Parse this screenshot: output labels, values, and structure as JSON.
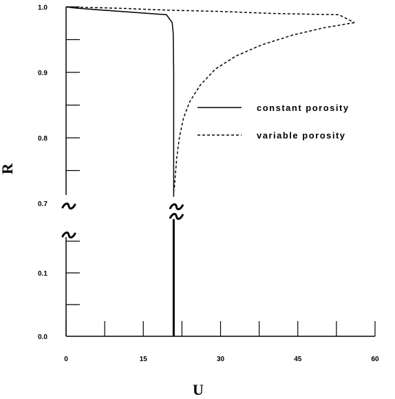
{
  "chart_data": {
    "type": "line",
    "title": "",
    "xlabel": "U",
    "ylabel": "R",
    "xlim": [
      0,
      60
    ],
    "y_broken_axis": true,
    "y_lower_range": [
      0.0,
      0.1
    ],
    "y_upper_range": [
      0.7,
      1.0
    ],
    "x_ticks": [
      "0",
      "15",
      "30",
      "45",
      "60"
    ],
    "y_ticks_lower": [
      "0.0",
      "0.1"
    ],
    "y_ticks_upper": [
      "0.7",
      "0.8",
      "0.9",
      "1.0"
    ],
    "grid": false,
    "legend_position": "right",
    "series": [
      {
        "name": "constant porosity",
        "style": "solid",
        "x": [
          0,
          2,
          19.5,
          20.6,
          20.8,
          20.9,
          20.9,
          20.9
        ],
        "y": [
          1.0,
          0.998,
          0.988,
          0.976,
          0.96,
          0.9,
          0.8,
          0.71
        ],
        "lower_x": [
          20.9,
          20.9
        ],
        "lower_y": [
          0.0,
          0.1
        ]
      },
      {
        "name": "variable porosity",
        "style": "dashed",
        "upper_x": [
          0,
          10,
          20,
          30,
          40,
          53,
          56
        ],
        "upper_y": [
          1.0,
          0.998,
          0.995,
          0.993,
          0.99,
          0.988,
          0.976
        ],
        "curve_x": [
          56,
          50,
          44,
          38,
          33,
          29,
          26,
          24,
          22.8,
          22,
          21.5,
          21.2,
          21.0
        ],
        "curve_y": [
          0.976,
          0.968,
          0.957,
          0.942,
          0.925,
          0.905,
          0.88,
          0.855,
          0.83,
          0.8,
          0.77,
          0.74,
          0.72
        ]
      }
    ]
  }
}
